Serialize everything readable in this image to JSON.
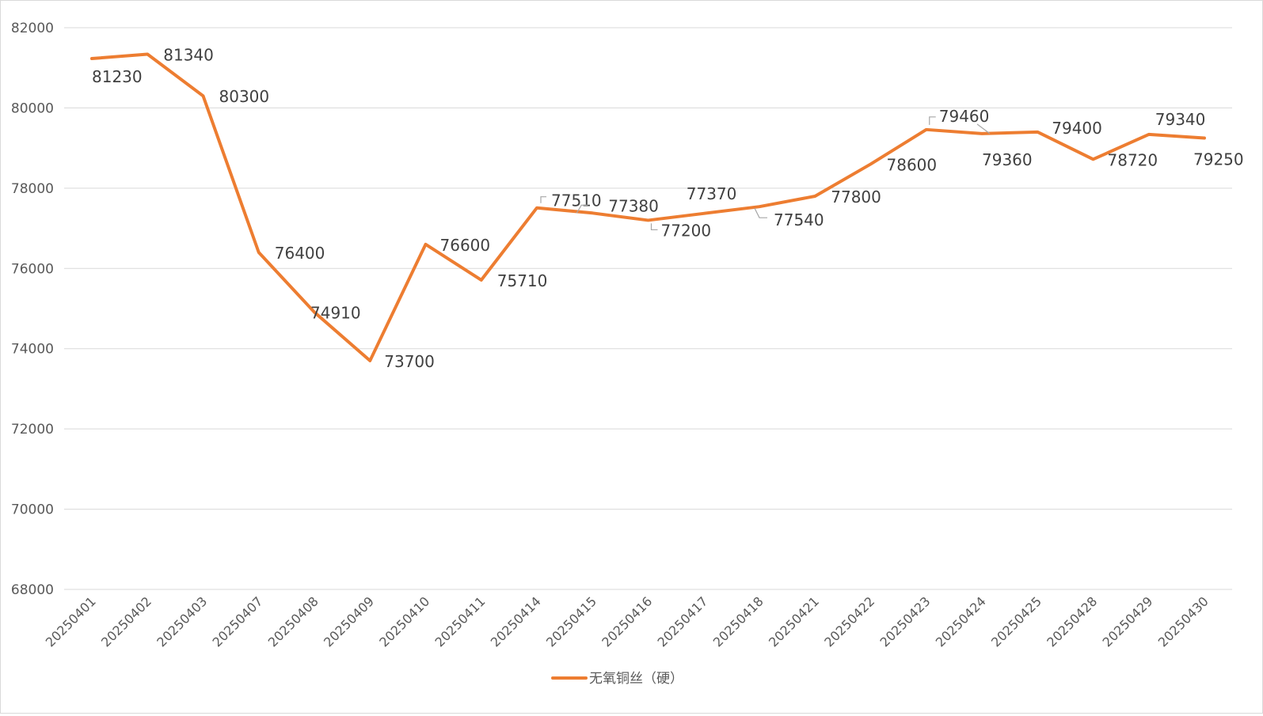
{
  "chart_data": {
    "type": "line",
    "title": "",
    "xlabel": "",
    "ylabel": "",
    "ylim": [
      68000,
      82000
    ],
    "yticks": [
      68000,
      70000,
      72000,
      74000,
      76000,
      78000,
      80000,
      82000
    ],
    "grid": true,
    "legend_position": "bottom",
    "categories": [
      "20250401",
      "20250402",
      "20250403",
      "20250407",
      "20250408",
      "20250409",
      "20250410",
      "20250411",
      "20250414",
      "20250415",
      "20250416",
      "20250417",
      "20250418",
      "20250421",
      "20250422",
      "20250423",
      "20250424",
      "20250425",
      "20250428",
      "20250429",
      "20250430"
    ],
    "series": [
      {
        "name": "无氧铜丝（硬）",
        "color": "#ed7d31",
        "values": [
          81230,
          81340,
          80300,
          76400,
          74910,
          73700,
          76600,
          75710,
          77510,
          77380,
          77200,
          77370,
          77540,
          77800,
          78600,
          79460,
          79360,
          79400,
          78720,
          79340,
          79250
        ]
      }
    ]
  }
}
